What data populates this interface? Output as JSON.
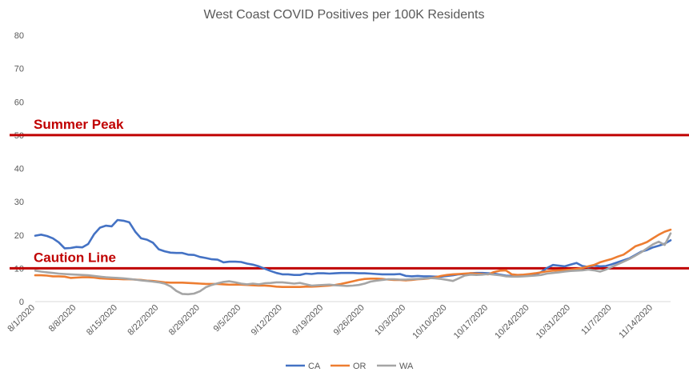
{
  "chart_data": {
    "type": "line",
    "title": "West Coast COVID Positives per 100K Residents",
    "xlabel": "",
    "ylabel": "",
    "ylim": [
      0,
      80
    ],
    "yticks": [
      0,
      10,
      20,
      30,
      40,
      50,
      60,
      70,
      80
    ],
    "x_start": "8/1/2020",
    "x_end": "11/14/2020",
    "x_tick_labels": [
      "8/1/2020",
      "8/8/2020",
      "8/15/2020",
      "8/22/2020",
      "8/29/2020",
      "9/5/2020",
      "9/12/2020",
      "9/19/2020",
      "9/26/2020",
      "10/3/2020",
      "10/10/2020",
      "10/17/2020",
      "10/24/2020",
      "10/31/2020",
      "11/7/2020",
      "11/14/2020"
    ],
    "grid": false,
    "legend_position": "bottom",
    "reference_lines": [
      {
        "label": "Summer Peak",
        "value": 50,
        "color": "#c00000"
      },
      {
        "label": "Caution Line",
        "value": 10,
        "color": "#c00000"
      }
    ],
    "series": [
      {
        "name": "CA",
        "color": "#4472c4",
        "values": [
          19.8,
          20.1,
          19.7,
          19.0,
          17.8,
          16.0,
          16.1,
          16.4,
          16.3,
          17.3,
          20.2,
          22.2,
          22.8,
          22.6,
          24.5,
          24.3,
          23.8,
          21.0,
          19.0,
          18.6,
          17.7,
          15.7,
          15.1,
          14.7,
          14.6,
          14.6,
          14.1,
          14.0,
          13.4,
          13.1,
          12.7,
          12.6,
          11.8,
          12.0,
          12.0,
          11.9,
          11.4,
          11.1,
          10.6,
          9.9,
          9.2,
          8.6,
          8.2,
          8.2,
          8.0,
          8.0,
          8.4,
          8.3,
          8.5,
          8.5,
          8.4,
          8.5,
          8.6,
          8.6,
          8.6,
          8.5,
          8.5,
          8.4,
          8.3,
          8.2,
          8.2,
          8.2,
          8.3,
          7.7,
          7.6,
          7.7,
          7.6,
          7.6,
          7.5,
          7.5,
          7.7,
          7.9,
          8.2,
          8.3,
          8.5,
          8.6,
          8.6,
          8.5,
          8.4,
          8.1,
          7.8,
          7.7,
          7.9,
          8.0,
          8.0,
          8.1,
          8.9,
          10.1,
          11.0,
          10.8,
          10.6,
          11.1,
          11.6,
          10.7,
          10.4,
          10.8,
          10.6,
          10.7,
          11.2,
          11.8,
          12.4,
          13.0,
          14.0,
          15.0,
          15.5,
          16.3,
          16.8,
          17.4,
          18.4
        ]
      },
      {
        "name": "OR",
        "color": "#ed7d31",
        "values": [
          7.9,
          7.9,
          7.8,
          7.6,
          7.6,
          7.5,
          7.1,
          7.2,
          7.3,
          7.3,
          7.2,
          7.0,
          6.9,
          6.8,
          6.8,
          6.7,
          6.7,
          6.6,
          6.5,
          6.3,
          6.2,
          6.0,
          5.8,
          5.7,
          5.7,
          5.7,
          5.6,
          5.5,
          5.4,
          5.3,
          5.3,
          5.3,
          5.2,
          5.1,
          5.1,
          5.1,
          5.0,
          4.9,
          4.8,
          4.8,
          4.7,
          4.5,
          4.4,
          4.4,
          4.4,
          4.4,
          4.5,
          4.5,
          4.6,
          4.7,
          4.8,
          5.0,
          5.3,
          5.7,
          6.1,
          6.5,
          6.8,
          6.9,
          6.9,
          6.8,
          6.6,
          6.5,
          6.5,
          6.4,
          6.5,
          6.7,
          6.8,
          7.0,
          7.3,
          7.7,
          8.0,
          8.2,
          8.3,
          8.4,
          8.5,
          8.4,
          8.3,
          8.2,
          8.9,
          9.3,
          9.4,
          8.2,
          8.0,
          8.1,
          8.3,
          8.5,
          8.8,
          9.1,
          9.3,
          9.4,
          9.5,
          9.6,
          9.8,
          10.1,
          10.6,
          11.0,
          11.8,
          12.3,
          12.8,
          13.5,
          14.1,
          15.3,
          16.6,
          17.2,
          17.9,
          19.0,
          20.1,
          21.0,
          21.6
        ]
      },
      {
        "name": "WA",
        "color": "#a5a5a5",
        "values": [
          9.3,
          9.0,
          8.8,
          8.6,
          8.4,
          8.3,
          8.2,
          8.1,
          8.0,
          7.9,
          7.7,
          7.5,
          7.3,
          7.2,
          7.1,
          7.0,
          6.8,
          6.6,
          6.4,
          6.2,
          6.0,
          5.8,
          5.4,
          4.6,
          3.2,
          2.3,
          2.2,
          2.4,
          3.1,
          4.3,
          5.0,
          5.5,
          5.9,
          6.1,
          5.8,
          5.4,
          5.2,
          5.4,
          5.2,
          5.5,
          5.6,
          5.8,
          5.8,
          5.6,
          5.4,
          5.6,
          5.2,
          4.8,
          4.9,
          5.0,
          5.1,
          4.9,
          4.8,
          4.7,
          4.8,
          5.0,
          5.4,
          6.0,
          6.3,
          6.5,
          6.7,
          6.7,
          6.6,
          6.6,
          6.7,
          6.8,
          6.9,
          7.1,
          7.0,
          6.8,
          6.5,
          6.2,
          7.0,
          7.8,
          8.1,
          8.0,
          8.1,
          8.3,
          8.1,
          7.9,
          7.6,
          7.5,
          7.5,
          7.6,
          7.7,
          7.8,
          8.0,
          8.4,
          8.6,
          8.8,
          9.0,
          9.2,
          9.3,
          9.4,
          9.6,
          9.4,
          9.0,
          9.6,
          10.4,
          11.2,
          12.0,
          12.8,
          13.8,
          14.8,
          16.0,
          17.2,
          18.0,
          17.0,
          20.5
        ]
      }
    ]
  }
}
